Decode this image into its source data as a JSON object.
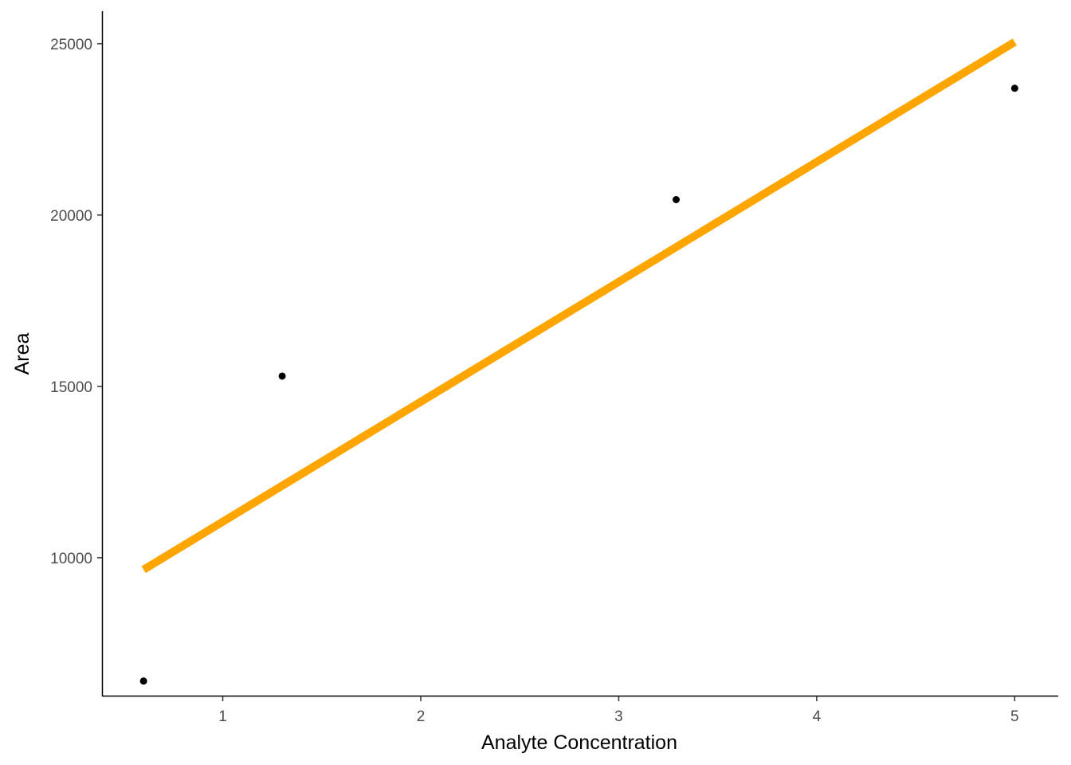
{
  "chart_data": {
    "type": "scatter",
    "title": "",
    "xlabel": "Analyte Concentration",
    "ylabel": "Area",
    "xlim": [
      0.39,
      5.22
    ],
    "ylim": [
      5950,
      25950
    ],
    "x_ticks": [
      1,
      2,
      3,
      4,
      5
    ],
    "y_ticks": [
      10000,
      15000,
      20000,
      25000
    ],
    "grid": false,
    "legend": "none",
    "series": [
      {
        "kind": "points",
        "color": "#000000",
        "points": [
          {
            "x": 0.6,
            "y": 6400
          },
          {
            "x": 1.3,
            "y": 15300
          },
          {
            "x": 3.29,
            "y": 20450
          },
          {
            "x": 5.0,
            "y": 23700
          }
        ]
      },
      {
        "kind": "fit-line",
        "color": "#FFA500",
        "points": [
          {
            "x": 0.6,
            "y": 9650
          },
          {
            "x": 5.0,
            "y": 25050
          }
        ]
      }
    ]
  }
}
